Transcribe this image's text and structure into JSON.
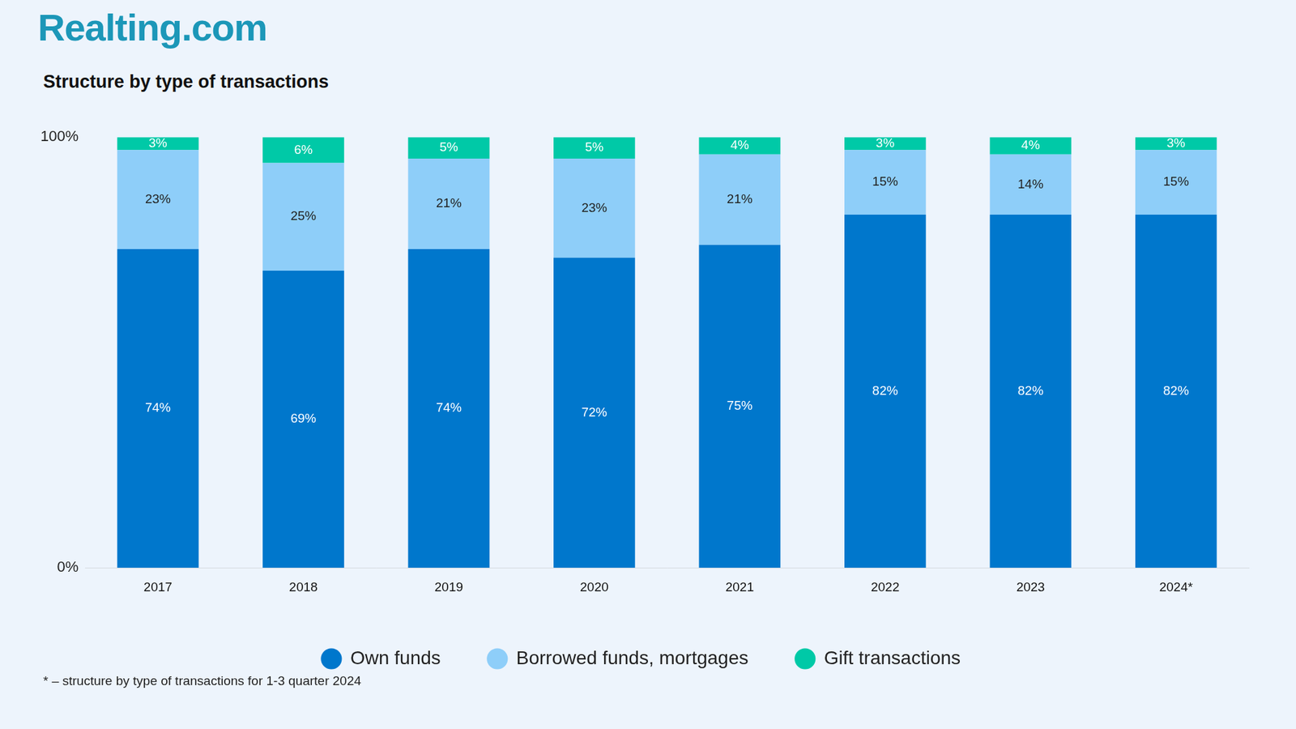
{
  "brand": "Realting.com",
  "footnote": "* – structure by type of transactions for 1-3 quarter 2024",
  "chart_data": {
    "type": "bar",
    "title": "Structure by type of transactions",
    "categories": [
      "2017",
      "2018",
      "2019",
      "2020",
      "2021",
      "2022",
      "2023",
      "2024*"
    ],
    "series": [
      {
        "name": "Own funds",
        "color": "#0077cc",
        "values": [
          74,
          69,
          74,
          72,
          75,
          82,
          82,
          82
        ],
        "value_labels": [
          "74%",
          "69%",
          "74%",
          "72%",
          "75%",
          "82%",
          "82%",
          "82%"
        ]
      },
      {
        "name": "Borrowed funds, mortgages",
        "color": "#8ecef9",
        "values": [
          23,
          25,
          21,
          23,
          21,
          15,
          14,
          15
        ],
        "value_labels": [
          "23%",
          "25%",
          "21%",
          "23%",
          "21%",
          "15%",
          "14%",
          "15%"
        ]
      },
      {
        "name": "Gift transactions",
        "color": "#00c9a7",
        "values": [
          3,
          6,
          5,
          5,
          4,
          3,
          4,
          3
        ],
        "value_labels": [
          "3%",
          "6%",
          "5%",
          "5%",
          "4%",
          "3%",
          "4%",
          "3%"
        ]
      }
    ],
    "ylim": [
      0,
      100
    ],
    "yticks": [
      {
        "value": 0,
        "label": "0%"
      },
      {
        "value": 100,
        "label": "100%"
      }
    ],
    "stacked": true,
    "data_labels": true,
    "grid": false,
    "legend": "bottom"
  }
}
